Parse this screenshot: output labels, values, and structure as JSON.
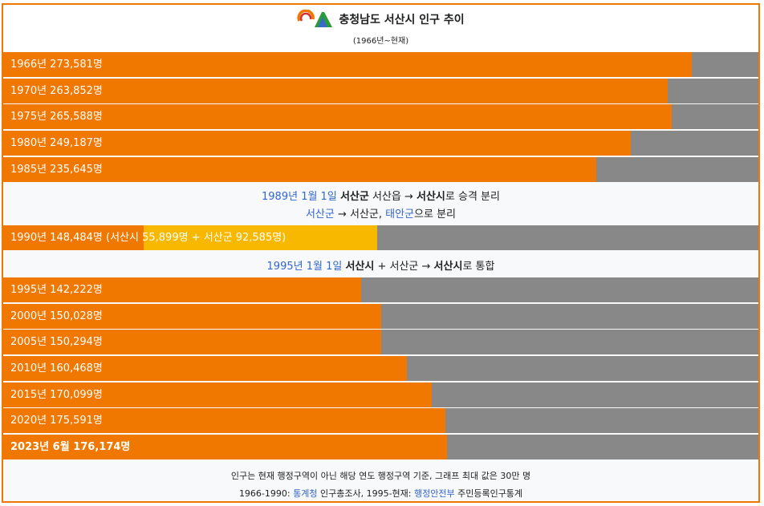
{
  "header": {
    "title": "충청남도 서산시 인구 추이",
    "subtitle": "(1966년~현재)"
  },
  "colors": {
    "bar": "#f07800",
    "bar_secondary": "#f8b800",
    "track": "#888888",
    "link": "#3366cc",
    "border": "#f07800"
  },
  "chart_data": {
    "type": "bar",
    "orientation": "horizontal",
    "max_value": 300000,
    "rows": [
      {
        "label": "1966년 273,581명",
        "value": 273581
      },
      {
        "label": "1970년 263,852명",
        "value": 263852
      },
      {
        "label": "1975년 265,588명",
        "value": 265588
      },
      {
        "label": "1980년 249,187명",
        "value": 249187
      },
      {
        "label": "1985년 235,645명",
        "value": 235645
      },
      {
        "label": "1990년 148,484명 (서산시 55,899명 + 서산군 92,585명)",
        "value": 148484,
        "segments": [
          55899,
          92585
        ]
      },
      {
        "label": "1995년 142,222명",
        "value": 142222
      },
      {
        "label": "2000년 150,028명",
        "value": 150028
      },
      {
        "label": "2005년 150,294명",
        "value": 150294
      },
      {
        "label": "2010년 160,468명",
        "value": 160468
      },
      {
        "label": "2015년 170,099명",
        "value": 170099
      },
      {
        "label": "2020년 175,591명",
        "value": 175591
      },
      {
        "label": "2023년 6월 176,174명",
        "value": 176174
      }
    ]
  },
  "notes": {
    "n1989": {
      "date": "1989년 1월 1일",
      "a": "서산군",
      "b": " 서산읍 → ",
      "c": "서산시",
      "d": "로 승격 분리"
    },
    "n1989b": {
      "a": "서산군",
      "b": " → 서산군, ",
      "c": "태안군",
      "d": "으로 분리"
    },
    "n1995": {
      "date": "1995년 1월 1일",
      "a": "서산시",
      "b": " + 서산군 → ",
      "c": "서산시",
      "d": "로 통합"
    }
  },
  "footer": {
    "line1": "인구는 현재 행정구역이 아닌 해당 연도 행정구역 기준, 그래프 최대 값은 30만 명",
    "line2_pre": "1966-1990: ",
    "line2_link1": "통계청",
    "line2_mid": " 인구총조사, 1995-현재: ",
    "line2_link2": "행정안전부",
    "line2_post": " 주민등록인구통계"
  }
}
